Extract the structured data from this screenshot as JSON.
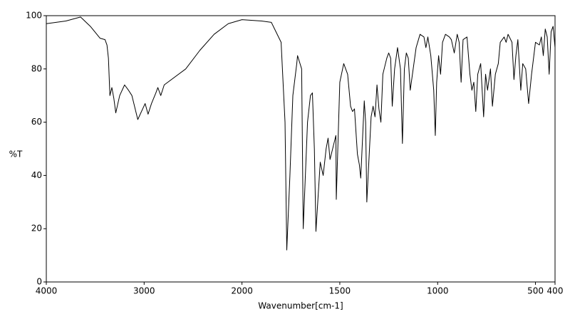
{
  "chart_data": {
    "type": "line",
    "xlabel": "Wavenumber[cm-1]",
    "ylabel": "%T",
    "xlim": [
      4000,
      400
    ],
    "xticks": [
      4000,
      3000,
      2000,
      1500,
      1000,
      500,
      400
    ],
    "xbreak": 2000,
    "ylim": [
      0,
      100
    ],
    "yticks": [
      0,
      20,
      40,
      60,
      80,
      100
    ],
    "grid": false,
    "color": "#000000",
    "x": [
      4000,
      3800,
      3650,
      3550,
      3450,
      3400,
      3380,
      3365,
      3350,
      3330,
      3310,
      3290,
      3250,
      3200,
      3160,
      3125,
      3065,
      2990,
      2960,
      2925,
      2880,
      2860,
      2830,
      2795,
      2575,
      2430,
      2285,
      2140,
      2000,
      1900,
      1850,
      1800,
      1780,
      1771,
      1755,
      1740,
      1720,
      1716,
      1695,
      1687,
      1665,
      1650,
      1640,
      1630,
      1622,
      1600,
      1585,
      1570,
      1560,
      1550,
      1530,
      1520,
      1518,
      1500,
      1480,
      1460,
      1445,
      1435,
      1425,
      1410,
      1400,
      1393,
      1375,
      1368,
      1362,
      1340,
      1330,
      1320,
      1310,
      1300,
      1290,
      1280,
      1270,
      1260,
      1250,
      1240,
      1232,
      1220,
      1205,
      1190,
      1180,
      1170,
      1160,
      1150,
      1140,
      1125,
      1110,
      1090,
      1070,
      1060,
      1050,
      1035,
      1020,
      1012,
      1005,
      995,
      985,
      975,
      960,
      940,
      930,
      915,
      900,
      890,
      880,
      870,
      850,
      835,
      825,
      815,
      805,
      795,
      780,
      765,
      755,
      745,
      730,
      720,
      705,
      690,
      680,
      660,
      650,
      640,
      620,
      610,
      600,
      590,
      575,
      565,
      550,
      535,
      520,
      500,
      480,
      470,
      460,
      450,
      440,
      430,
      420,
      410,
      400
    ],
    "y": [
      97,
      98,
      99.5,
      96,
      91.5,
      91,
      89,
      84,
      70,
      73,
      69,
      63.5,
      70,
      74,
      72,
      70,
      61,
      67,
      63,
      67,
      71,
      73,
      70,
      74,
      80,
      87,
      93,
      97,
      98.5,
      98,
      97.5,
      90,
      60,
      12,
      40,
      70,
      82,
      85,
      80,
      20,
      60,
      70,
      71,
      50,
      19,
      45,
      40,
      50,
      54,
      46,
      52,
      55,
      31,
      75,
      82,
      78,
      66,
      64,
      65,
      48,
      44,
      39,
      68,
      60,
      30,
      62,
      66,
      62,
      74,
      65,
      60,
      78,
      81,
      84,
      86,
      84,
      66,
      80,
      88,
      80,
      52,
      80,
      86,
      84,
      72,
      80,
      88,
      93,
      92,
      88,
      92,
      85,
      72,
      55,
      75,
      85,
      78,
      90,
      93,
      92,
      91,
      86,
      93,
      90,
      75,
      91,
      92,
      78,
      72,
      75,
      64,
      78,
      82,
      62,
      78,
      72,
      80,
      66,
      78,
      82,
      90,
      92,
      90,
      93,
      90,
      76,
      85,
      91,
      72,
      82,
      80,
      67,
      78,
      90,
      89,
      92,
      85,
      95,
      92,
      78,
      94,
      96,
      88
    ]
  }
}
